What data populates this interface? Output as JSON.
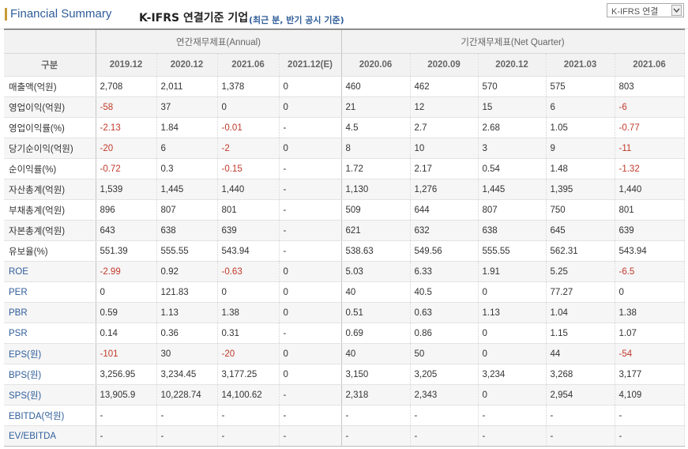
{
  "header": {
    "title": "Financial Summary",
    "subtitle": "K-IFRS 연결기준 기업",
    "note": "(최근 분, 반기 공시 기준)",
    "select_value": "K-IFRS 연결"
  },
  "table": {
    "group_annual": "연간재무제표(Annual)",
    "group_quarter": "기간재무제표(Net Quarter)",
    "row_header": "구분",
    "columns": [
      "2019.12",
      "2020.12",
      "2021.06",
      "2021.12(E)",
      "2020.06",
      "2020.09",
      "2020.12",
      "2021.03",
      "2021.06"
    ],
    "rows": [
      {
        "label": "매출액(억원)",
        "values": [
          "2,708",
          "2,011",
          "1,378",
          "0",
          "460",
          "462",
          "570",
          "575",
          "803"
        ]
      },
      {
        "label": "영업이익(억원)",
        "values": [
          "-58",
          "37",
          "0",
          "0",
          "21",
          "12",
          "15",
          "6",
          "-6"
        ]
      },
      {
        "label": "영업이익률(%)",
        "values": [
          "-2.13",
          "1.84",
          "-0.01",
          "-",
          "4.5",
          "2.7",
          "2.68",
          "1.05",
          "-0.77"
        ]
      },
      {
        "label": "당기순이익(억원)",
        "values": [
          "-20",
          "6",
          "-2",
          "0",
          "8",
          "10",
          "3",
          "9",
          "-11"
        ]
      },
      {
        "label": "순이익률(%)",
        "values": [
          "-0.72",
          "0.3",
          "-0.15",
          "-",
          "1.72",
          "2.17",
          "0.54",
          "1.48",
          "-1.32"
        ]
      },
      {
        "label": "자산총계(억원)",
        "values": [
          "1,539",
          "1,445",
          "1,440",
          "-",
          "1,130",
          "1,276",
          "1,445",
          "1,395",
          "1,440"
        ]
      },
      {
        "label": "부채총계(억원)",
        "values": [
          "896",
          "807",
          "801",
          "-",
          "509",
          "644",
          "807",
          "750",
          "801"
        ]
      },
      {
        "label": "자본총계(억원)",
        "values": [
          "643",
          "638",
          "639",
          "-",
          "621",
          "632",
          "638",
          "645",
          "639"
        ]
      },
      {
        "label": "유보율(%)",
        "values": [
          "551.39",
          "555.55",
          "543.94",
          "-",
          "538.63",
          "549.56",
          "555.55",
          "562.31",
          "543.94"
        ]
      },
      {
        "label": "ROE",
        "values": [
          "-2.99",
          "0.92",
          "-0.63",
          "0",
          "5.03",
          "6.33",
          "1.91",
          "5.25",
          "-6.5"
        ]
      },
      {
        "label": "PER",
        "values": [
          "0",
          "121.83",
          "0",
          "0",
          "40",
          "40.5",
          "0",
          "77.27",
          "0"
        ]
      },
      {
        "label": "PBR",
        "values": [
          "0.59",
          "1.13",
          "1.38",
          "0",
          "0.51",
          "0.63",
          "1.13",
          "1.04",
          "1.38"
        ]
      },
      {
        "label": "PSR",
        "values": [
          "0.14",
          "0.36",
          "0.31",
          "-",
          "0.69",
          "0.86",
          "0",
          "1.15",
          "1.07"
        ]
      },
      {
        "label": "EPS(원)",
        "values": [
          "-101",
          "30",
          "-20",
          "0",
          "40",
          "50",
          "0",
          "44",
          "-54"
        ]
      },
      {
        "label": "BPS(원)",
        "values": [
          "3,256.95",
          "3,234.45",
          "3,177.25",
          "0",
          "3,150",
          "3,205",
          "3,234",
          "3,268",
          "3,177"
        ]
      },
      {
        "label": "SPS(원)",
        "values": [
          "13,905.9",
          "10,228.74",
          "14,100.62",
          "-",
          "2,318",
          "2,343",
          "0",
          "2,954",
          "4,109"
        ]
      },
      {
        "label": "EBITDA(억원)",
        "values": [
          "-",
          "-",
          "-",
          "-",
          "-",
          "-",
          "-",
          "-",
          "-"
        ]
      },
      {
        "label": "EV/EBITDA",
        "values": [
          "-",
          "-",
          "-",
          "-",
          "-",
          "-",
          "-",
          "-",
          "-"
        ]
      }
    ]
  },
  "colors": {
    "accent": "#2f5d9a",
    "negative": "#c0392b",
    "title_bar": "#c89a3a"
  }
}
